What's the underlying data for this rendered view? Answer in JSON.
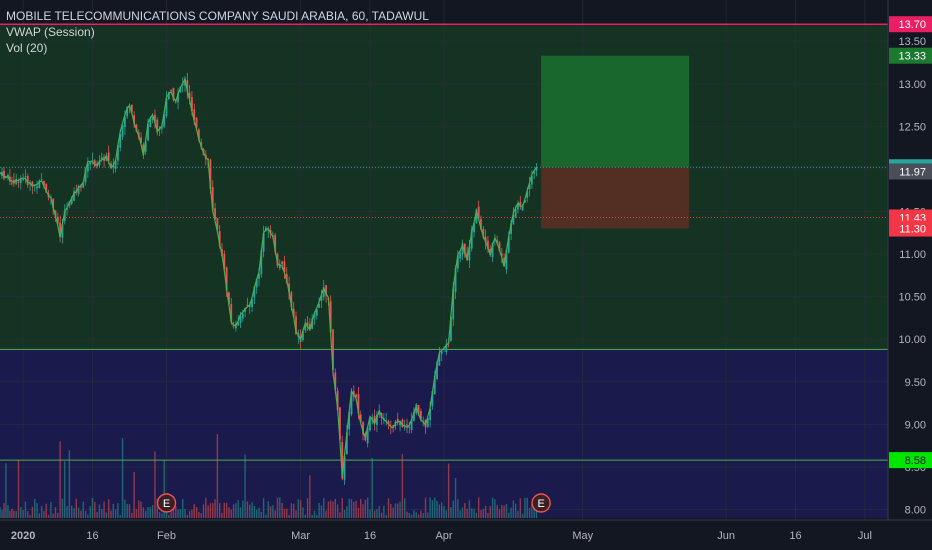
{
  "header": {
    "symbol_title": "MOBILE TELECOMMUNICATIONS COMPANY SAUDI ARABIA, 60, TADAWUL",
    "indicator_1": "VWAP (Session)",
    "indicator_2": "Vol (20)"
  },
  "colors": {
    "background": "#131722",
    "green_zone": "#143322",
    "blue_zone": "#1a1a4d",
    "candle_up": "#26a69a",
    "candle_down": "#ef5350",
    "vwap": "#4caf50",
    "target_zone": "#1b7a30",
    "stop_zone": "#5a2e24"
  },
  "chart_data": {
    "type": "candlestick",
    "ylim": [
      7.9,
      13.82
    ],
    "y_ticks": [
      "8.00",
      "8.50",
      "9.00",
      "9.50",
      "10.00",
      "10.50",
      "11.00",
      "11.50",
      "12.00",
      "12.50",
      "13.00",
      "13.50"
    ],
    "x_ticks": [
      "2020",
      "16",
      "Feb",
      "Mar",
      "16",
      "Apr",
      "May",
      "Jun",
      "16",
      "Jul"
    ],
    "x_tick_dates": [
      "2020-01-01",
      "2020-01-16",
      "2020-02-01",
      "2020-03-01",
      "2020-03-16",
      "2020-04-01",
      "2020-05-01",
      "2020-06-01",
      "2020-06-16",
      "2020-07-01"
    ],
    "x_range": [
      "2019-12-27",
      "2020-07-06"
    ],
    "price_series": [
      [
        "2019-12-27",
        11.95
      ],
      [
        "2019-12-30",
        11.85
      ],
      [
        "2020-01-01",
        11.9
      ],
      [
        "2020-01-03",
        11.8
      ],
      [
        "2020-01-05",
        11.85
      ],
      [
        "2020-01-07",
        11.65
      ],
      [
        "2020-01-08",
        11.45
      ],
      [
        "2020-01-09",
        11.2
      ],
      [
        "2020-01-10",
        11.5
      ],
      [
        "2020-01-12",
        11.7
      ],
      [
        "2020-01-14",
        11.85
      ],
      [
        "2020-01-15",
        12.1
      ],
      [
        "2020-01-17",
        12.05
      ],
      [
        "2020-01-19",
        12.15
      ],
      [
        "2020-01-20",
        12.0
      ],
      [
        "2020-01-21",
        12.1
      ],
      [
        "2020-01-22",
        12.45
      ],
      [
        "2020-01-23",
        12.65
      ],
      [
        "2020-01-24",
        12.75
      ],
      [
        "2020-01-25",
        12.55
      ],
      [
        "2020-01-26",
        12.4
      ],
      [
        "2020-01-27",
        12.15
      ],
      [
        "2020-01-28",
        12.55
      ],
      [
        "2020-01-29",
        12.65
      ],
      [
        "2020-01-30",
        12.45
      ],
      [
        "2020-01-31",
        12.5
      ],
      [
        "2020-02-01",
        12.85
      ],
      [
        "2020-02-02",
        12.9
      ],
      [
        "2020-02-03",
        12.8
      ],
      [
        "2020-02-04",
        12.95
      ],
      [
        "2020-02-05",
        13.05
      ],
      [
        "2020-02-06",
        12.8
      ],
      [
        "2020-02-07",
        12.55
      ],
      [
        "2020-02-08",
        12.35
      ],
      [
        "2020-02-09",
        12.2
      ],
      [
        "2020-02-10",
        12.1
      ],
      [
        "2020-02-11",
        11.5
      ],
      [
        "2020-02-12",
        11.25
      ],
      [
        "2020-02-13",
        11.0
      ],
      [
        "2020-02-14",
        10.6
      ],
      [
        "2020-02-15",
        10.2
      ],
      [
        "2020-02-16",
        10.15
      ],
      [
        "2020-02-17",
        10.3
      ],
      [
        "2020-02-18",
        10.35
      ],
      [
        "2020-02-19",
        10.4
      ],
      [
        "2020-02-20",
        10.6
      ],
      [
        "2020-02-21",
        10.8
      ],
      [
        "2020-02-22",
        11.25
      ],
      [
        "2020-02-23",
        11.3
      ],
      [
        "2020-02-24",
        11.2
      ],
      [
        "2020-02-25",
        10.9
      ],
      [
        "2020-02-26",
        10.85
      ],
      [
        "2020-02-27",
        10.7
      ],
      [
        "2020-02-28",
        10.4
      ],
      [
        "2020-02-29",
        10.1
      ],
      [
        "2020-03-01",
        10.0
      ],
      [
        "2020-03-02",
        10.2
      ],
      [
        "2020-03-03",
        10.1
      ],
      [
        "2020-03-04",
        10.3
      ],
      [
        "2020-03-05",
        10.45
      ],
      [
        "2020-03-06",
        10.6
      ],
      [
        "2020-03-07",
        10.5
      ],
      [
        "2020-03-08",
        9.6
      ],
      [
        "2020-03-09",
        9.2
      ],
      [
        "2020-03-10",
        8.4
      ],
      [
        "2020-03-11",
        8.9
      ],
      [
        "2020-03-12",
        9.4
      ],
      [
        "2020-03-13",
        9.3
      ],
      [
        "2020-03-14",
        9.0
      ],
      [
        "2020-03-15",
        8.85
      ],
      [
        "2020-03-16",
        9.1
      ],
      [
        "2020-03-17",
        9.0
      ],
      [
        "2020-03-18",
        9.15
      ],
      [
        "2020-03-19",
        9.05
      ],
      [
        "2020-03-20",
        9.0
      ],
      [
        "2020-03-21",
        8.95
      ],
      [
        "2020-03-22",
        9.05
      ],
      [
        "2020-03-23",
        9.0
      ],
      [
        "2020-03-24",
        8.95
      ],
      [
        "2020-03-25",
        9.05
      ],
      [
        "2020-03-26",
        9.2
      ],
      [
        "2020-03-27",
        9.05
      ],
      [
        "2020-03-28",
        9.0
      ],
      [
        "2020-03-29",
        9.2
      ],
      [
        "2020-03-30",
        9.55
      ],
      [
        "2020-03-31",
        9.85
      ],
      [
        "2020-04-01",
        9.9
      ],
      [
        "2020-04-02",
        9.95
      ],
      [
        "2020-04-03",
        10.6
      ],
      [
        "2020-04-04",
        11.0
      ],
      [
        "2020-04-05",
        11.1
      ],
      [
        "2020-04-06",
        10.95
      ],
      [
        "2020-04-07",
        11.25
      ],
      [
        "2020-04-08",
        11.5
      ],
      [
        "2020-04-09",
        11.3
      ],
      [
        "2020-04-10",
        11.15
      ],
      [
        "2020-04-11",
        11.0
      ],
      [
        "2020-04-12",
        11.2
      ],
      [
        "2020-04-13",
        11.05
      ],
      [
        "2020-04-14",
        10.85
      ],
      [
        "2020-04-15",
        11.2
      ],
      [
        "2020-04-16",
        11.5
      ],
      [
        "2020-04-17",
        11.6
      ],
      [
        "2020-04-18",
        11.55
      ],
      [
        "2020-04-19",
        11.75
      ],
      [
        "2020-04-20",
        11.95
      ],
      [
        "2020-04-21",
        12.02
      ]
    ],
    "vwap_label": "VWAP (Session)",
    "volume_label": "Vol (20)",
    "price_levels": [
      {
        "value": 13.7,
        "label": "13.70",
        "line_color": "#e91e63"
      },
      {
        "value": 12.02,
        "label": "12.02",
        "line_color": "#26a69a"
      },
      {
        "value": 11.43,
        "label": "11.43",
        "line_color": "#f23645"
      },
      {
        "value": 9.88,
        "label": "",
        "line_color": "#4caf50"
      },
      {
        "value": 8.58,
        "label": "8.58",
        "line_color": "#4caf50"
      }
    ],
    "axis_tags": [
      {
        "value": 13.7,
        "label": "13.70",
        "bg": "#e91e63",
        "fg": "#ffffff"
      },
      {
        "value": 13.33,
        "label": "13.33",
        "bg": "#1b7a30",
        "fg": "#ffffff"
      },
      {
        "value": 12.02,
        "label": "12.02",
        "bg": "#26a69a",
        "fg": "#ffffff"
      },
      {
        "value": 11.97,
        "label": "11.97",
        "bg": "#4a4e59",
        "fg": "#ffffff"
      },
      {
        "value": 11.43,
        "label": "11.43",
        "bg": "#f23645",
        "fg": "#ffffff"
      },
      {
        "value": 11.3,
        "label": "11.30",
        "bg": "#f23645",
        "fg": "#ffffff"
      },
      {
        "value": 8.58,
        "label": "8.58",
        "bg": "#00e600",
        "fg": "#131722"
      }
    ],
    "zones": [
      {
        "name": "green-zone",
        "from": 9.88,
        "to": 13.7,
        "color": "#143322"
      },
      {
        "name": "blue-zone",
        "from": 7.9,
        "to": 9.88,
        "color": "#1a1a4d"
      }
    ],
    "position_tool": {
      "start_date": "2020-04-22",
      "end_date": "2020-05-24",
      "entry": 12.02,
      "target": 13.33,
      "stop": 11.3
    },
    "earnings_markers": [
      {
        "date": "2020-02-01",
        "label": "E"
      },
      {
        "date": "2020-04-22",
        "label": "E"
      }
    ]
  }
}
